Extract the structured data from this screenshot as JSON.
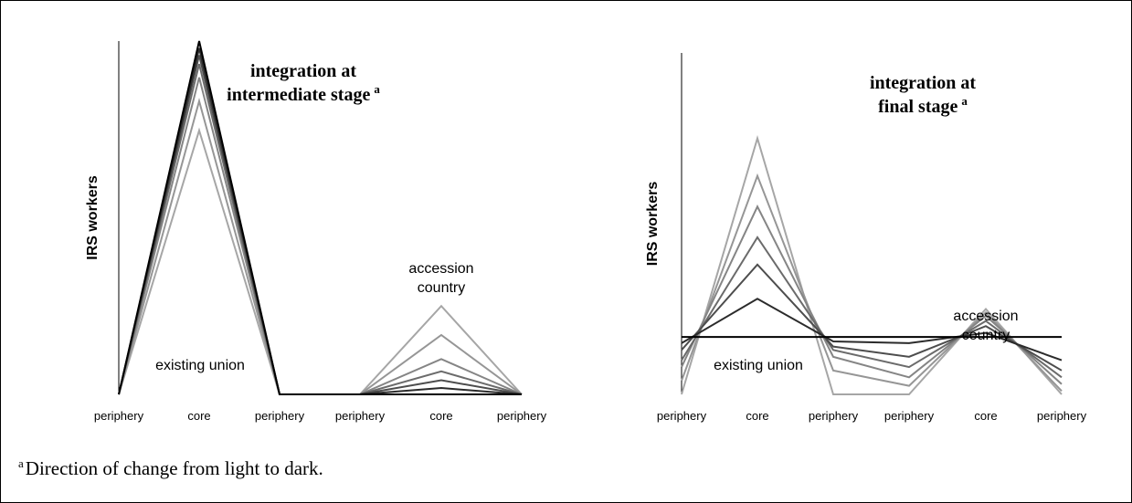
{
  "chart_data": [
    {
      "type": "line",
      "title": [
        "integration at",
        "intermediate stage"
      ],
      "title_note": "a",
      "y_label": "IRS workers",
      "annotations": [
        [
          "existing union"
        ],
        [
          "accession",
          "country"
        ]
      ],
      "categories": [
        "periphery",
        "core",
        "periphery",
        "periphery",
        "core",
        "periphery"
      ],
      "ylim": [
        0,
        100
      ],
      "series": [
        {
          "color": "#a6a6a6",
          "values": [
            0,
            74.7,
            0,
            0,
            25,
            0
          ]
        },
        {
          "color": "#969696",
          "values": [
            0,
            83,
            0,
            0,
            16.8,
            0
          ]
        },
        {
          "color": "#858585",
          "values": [
            0,
            89.7,
            0,
            0,
            10,
            0
          ]
        },
        {
          "color": "#6b6b6b",
          "values": [
            0,
            93.5,
            0,
            0,
            6.5,
            0
          ]
        },
        {
          "color": "#4d4d4d",
          "values": [
            0,
            96,
            0,
            0,
            4,
            0
          ]
        },
        {
          "color": "#2b2b2b",
          "values": [
            0,
            98,
            0,
            0,
            1.8,
            0
          ]
        },
        {
          "color": "#000000",
          "values": [
            0,
            100,
            0,
            0,
            0,
            0
          ]
        }
      ]
    },
    {
      "type": "line",
      "title": [
        "integration at",
        "final stage"
      ],
      "title_note": "a",
      "y_label": "IRS workers",
      "annotations": [
        [
          "existing union"
        ],
        [
          "accession",
          "country"
        ]
      ],
      "categories": [
        "periphery",
        "core",
        "periphery",
        "periphery",
        "core",
        "periphery"
      ],
      "ylim": [
        0,
        100
      ],
      "series": [
        {
          "color": "#a6a6a6",
          "values": [
            0,
            75,
            0,
            0,
            25,
            0
          ]
        },
        {
          "color": "#969696",
          "values": [
            4,
            64,
            7,
            2.5,
            24,
            1
          ]
        },
        {
          "color": "#858585",
          "values": [
            8,
            55,
            11,
            5,
            23,
            3
          ]
        },
        {
          "color": "#6b6b6b",
          "values": [
            10,
            46,
            13,
            8,
            21.5,
            5
          ]
        },
        {
          "color": "#4d4d4d",
          "values": [
            13,
            38,
            14,
            11,
            20,
            7
          ]
        },
        {
          "color": "#2b2b2b",
          "values": [
            15,
            28,
            15.5,
            15,
            18,
            10
          ]
        },
        {
          "color": "#000000",
          "values": [
            16.8,
            16.8,
            16.8,
            16.8,
            16.8,
            16.8
          ]
        }
      ]
    }
  ],
  "footnote": {
    "marker": "a",
    "text": "Direction of change from light to dark."
  }
}
